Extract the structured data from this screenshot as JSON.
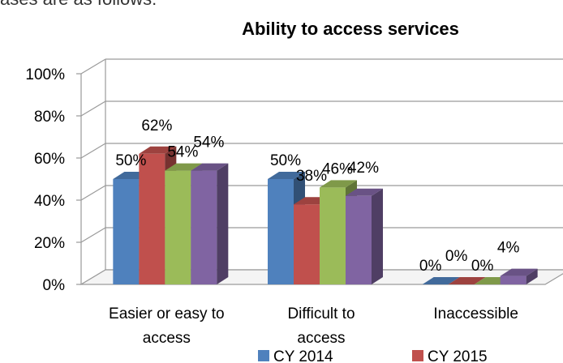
{
  "page_text": "ases are as follows:",
  "chart_data": {
    "type": "bar",
    "title": "Ability to access services",
    "categories": [
      [
        "Easier or easy to",
        "access"
      ],
      [
        "Difficult to",
        "access"
      ],
      [
        "Inaccessible"
      ]
    ],
    "series": [
      {
        "name": "CY 2014",
        "color": "#4f81bd",
        "values": [
          50,
          50,
          0
        ]
      },
      {
        "name": "CY 2015",
        "color": "#c0504d",
        "values": [
          62,
          38,
          0
        ]
      },
      {
        "name": "",
        "color": "#9bbb59",
        "values": [
          54,
          46,
          0
        ]
      },
      {
        "name": "",
        "color": "#8064a2",
        "values": [
          54,
          42,
          4
        ]
      }
    ],
    "data_labels": [
      [
        "50%",
        "50%",
        "0%"
      ],
      [
        "62%",
        "38%",
        "0%"
      ],
      [
        "54%",
        "46%",
        "0%"
      ],
      [
        "54%",
        "42%",
        "4%"
      ]
    ],
    "y_ticks": [
      "0%",
      "20%",
      "40%",
      "60%",
      "80%",
      "100%"
    ],
    "ylim": [
      0,
      100
    ],
    "grid": true,
    "legend": "bottom"
  }
}
